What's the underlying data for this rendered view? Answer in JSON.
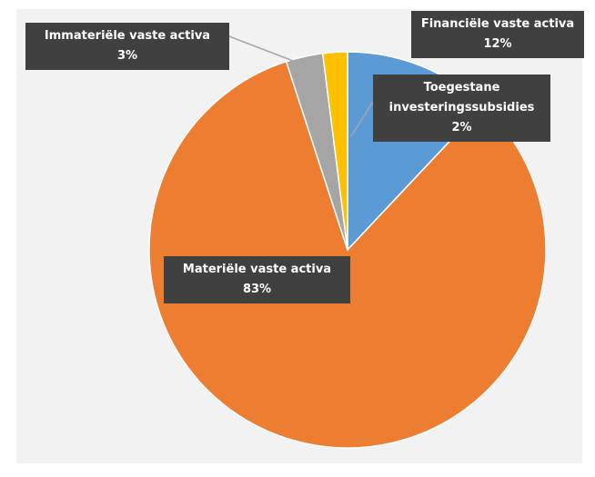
{
  "chart_data": {
    "type": "pie",
    "categories": [
      "Financiële vaste activa",
      "Materiële vaste activa",
      "Immateriële vaste activa",
      "Toegestane investeringssubsidies"
    ],
    "values": [
      12,
      83,
      3,
      2
    ],
    "value_labels": [
      "12%",
      "83%",
      "3%",
      "2%"
    ],
    "colors": [
      "#5b9bd5",
      "#ed7d31",
      "#a5a5a5",
      "#ffc000"
    ]
  }
}
